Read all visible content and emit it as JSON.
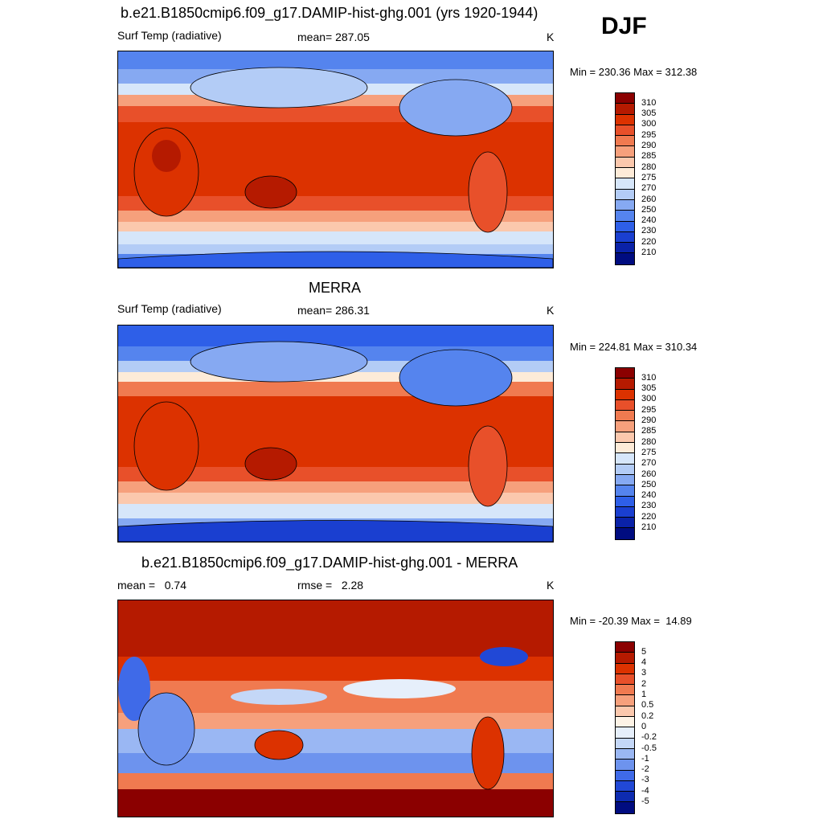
{
  "season": "DJF",
  "panels": [
    {
      "title": "b.e21.B1850cmip6.f09_g17.DAMIP-hist-ghg.001 (yrs 1920-1944)",
      "left_label": "Surf Temp (radiative)",
      "center_label": "mean= 287.05",
      "units": "K",
      "minmax": "Min = 230.36 Max = 312.38"
    },
    {
      "title": "MERRA",
      "left_label": "Surf Temp (radiative)",
      "center_label": "mean= 286.31",
      "units": "K",
      "minmax": "Min = 224.81 Max = 310.34"
    },
    {
      "title": "b.e21.B1850cmip6.f09_g17.DAMIP-hist-ghg.001 - MERRA",
      "left_label": "mean =   0.74",
      "center_label": "rmse =   2.28",
      "units": "K",
      "minmax": "Min = -20.39 Max =  14.89"
    }
  ],
  "chart_data": [
    {
      "type": "heatmap",
      "title": "b.e21.B1850cmip6.f09_g17.DAMIP-hist-ghg.001 (yrs 1920-1944)",
      "variable": "Surf Temp (radiative)",
      "units": "K",
      "mean": 287.05,
      "min": 230.36,
      "max": 312.38,
      "colorbar_levels": [
        310,
        305,
        300,
        295,
        290,
        285,
        280,
        275,
        270,
        260,
        250,
        240,
        230,
        220,
        210
      ]
    },
    {
      "type": "heatmap",
      "title": "MERRA",
      "variable": "Surf Temp (radiative)",
      "units": "K",
      "mean": 286.31,
      "min": 224.81,
      "max": 310.34,
      "colorbar_levels": [
        310,
        305,
        300,
        295,
        290,
        285,
        280,
        275,
        270,
        260,
        250,
        240,
        230,
        220,
        210
      ]
    },
    {
      "type": "heatmap",
      "title": "b.e21.B1850cmip6.f09_g17.DAMIP-hist-ghg.001 - MERRA",
      "units": "K",
      "mean": 0.74,
      "rmse": 2.28,
      "min": -20.39,
      "max": 14.89,
      "colorbar_levels": [
        "5",
        "4",
        "3",
        "2",
        "1",
        "0.5",
        "0.2",
        "0",
        "-0.2",
        "-0.5",
        "-1",
        "-2",
        "-3",
        "-4",
        "-5"
      ]
    }
  ],
  "colors": {
    "abs_scale": [
      "#8b0000",
      "#b51a00",
      "#dc3200",
      "#e8502a",
      "#f07a50",
      "#f6a07c",
      "#fbc8ad",
      "#fdebd8",
      "#d6e6fa",
      "#b3ccf6",
      "#86a9f2",
      "#5584ee",
      "#2e5fe8",
      "#1a3fd0",
      "#0a22a8",
      "#000c80"
    ],
    "diff_scale": [
      "#8b0000",
      "#b51a00",
      "#dc3200",
      "#e8502a",
      "#f07a50",
      "#f6a07c",
      "#fbc8ad",
      "#fdf3e6",
      "#e6effb",
      "#c4d7f7",
      "#9ab7f3",
      "#6d93ee",
      "#3f6ae8",
      "#2148d6",
      "#0d2bb0",
      "#000c80"
    ]
  }
}
